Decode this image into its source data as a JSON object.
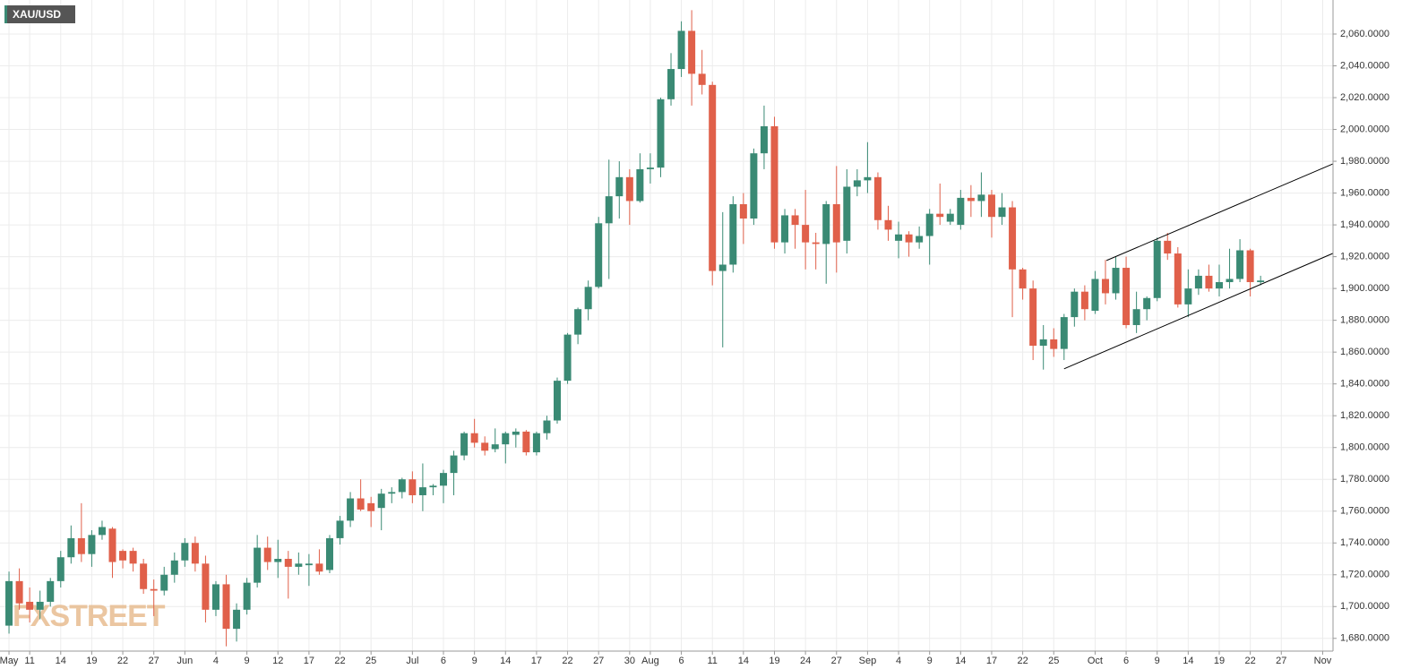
{
  "chart_data": {
    "type": "candlestick",
    "title": "XAU/USD",
    "watermark": "FXSTREET",
    "up_color": "#3a8a74",
    "down_color": "#e0604a",
    "grid": true,
    "xlim": [
      -0.87,
      128
    ],
    "ylim": [
      1672,
      2081.4
    ],
    "xticks": [
      {
        "value": 0,
        "label": "May"
      },
      {
        "value": 2,
        "label": "11"
      },
      {
        "value": 5,
        "label": "14"
      },
      {
        "value": 8,
        "label": "19"
      },
      {
        "value": 11,
        "label": "22"
      },
      {
        "value": 14,
        "label": "27"
      },
      {
        "value": 17,
        "label": "Jun"
      },
      {
        "value": 20,
        "label": "4"
      },
      {
        "value": 23,
        "label": "9"
      },
      {
        "value": 26,
        "label": "12"
      },
      {
        "value": 29,
        "label": "17"
      },
      {
        "value": 32,
        "label": "22"
      },
      {
        "value": 35,
        "label": "25"
      },
      {
        "value": 39,
        "label": "Jul"
      },
      {
        "value": 42,
        "label": "6"
      },
      {
        "value": 45,
        "label": "9"
      },
      {
        "value": 48,
        "label": "14"
      },
      {
        "value": 51,
        "label": "17"
      },
      {
        "value": 54,
        "label": "22"
      },
      {
        "value": 57,
        "label": "27"
      },
      {
        "value": 60,
        "label": "30"
      },
      {
        "value": 62,
        "label": "Aug"
      },
      {
        "value": 65,
        "label": "6"
      },
      {
        "value": 68,
        "label": "11"
      },
      {
        "value": 71,
        "label": "14"
      },
      {
        "value": 74,
        "label": "19"
      },
      {
        "value": 77,
        "label": "24"
      },
      {
        "value": 80,
        "label": "27"
      },
      {
        "value": 83,
        "label": "Sep"
      },
      {
        "value": 86,
        "label": "4"
      },
      {
        "value": 89,
        "label": "9"
      },
      {
        "value": 92,
        "label": "14"
      },
      {
        "value": 95,
        "label": "17"
      },
      {
        "value": 98,
        "label": "22"
      },
      {
        "value": 101,
        "label": "25"
      },
      {
        "value": 105,
        "label": "Oct"
      },
      {
        "value": 108,
        "label": "6"
      },
      {
        "value": 111,
        "label": "9"
      },
      {
        "value": 114,
        "label": "14"
      },
      {
        "value": 117,
        "label": "19"
      },
      {
        "value": 120,
        "label": "22"
      },
      {
        "value": 123,
        "label": "27"
      },
      {
        "value": 127,
        "label": "Nov"
      }
    ],
    "yticks": [
      {
        "value": 1680,
        "label": "1,680.0000"
      },
      {
        "value": 1700,
        "label": "1,700.0000"
      },
      {
        "value": 1720,
        "label": "1,720.0000"
      },
      {
        "value": 1740,
        "label": "1,740.0000"
      },
      {
        "value": 1760,
        "label": "1,760.0000"
      },
      {
        "value": 1780,
        "label": "1,780.0000"
      },
      {
        "value": 1800,
        "label": "1,800.0000"
      },
      {
        "value": 1820,
        "label": "1,820.0000"
      },
      {
        "value": 1840,
        "label": "1,840.0000"
      },
      {
        "value": 1860,
        "label": "1,860.0000"
      },
      {
        "value": 1880,
        "label": "1,880.0000"
      },
      {
        "value": 1900,
        "label": "1,900.0000"
      },
      {
        "value": 1920,
        "label": "1,920.0000"
      },
      {
        "value": 1940,
        "label": "1,940.0000"
      },
      {
        "value": 1960,
        "label": "1,960.0000"
      },
      {
        "value": 1980,
        "label": "1,980.0000"
      },
      {
        "value": 2000,
        "label": "2,000.0000"
      },
      {
        "value": 2020,
        "label": "2,020.0000"
      },
      {
        "value": 2040,
        "label": "2,040.0000"
      },
      {
        "value": 2060,
        "label": "2,060.0000"
      }
    ],
    "open": [
      1688,
      1716,
      1703,
      1698,
      1703,
      1716,
      1731,
      1743,
      1733,
      1745,
      1749,
      1735,
      1735,
      1727,
      1711,
      1710,
      1720,
      1729,
      1740,
      1727,
      1698,
      1714,
      1686,
      1698,
      1715,
      1737,
      1728,
      1730,
      1725,
      1726,
      1727,
      1723,
      1743,
      1754,
      1768,
      1765,
      1762,
      1771,
      1772,
      1780,
      1770,
      1775,
      1776,
      1784,
      1795,
      1809,
      1803,
      1799,
      1802,
      1808,
      1810,
      1797,
      1809,
      1817,
      1842,
      1871,
      1887,
      1901,
      1941,
      1958,
      1970,
      1955,
      1975,
      1976,
      2019,
      2038,
      2062,
      2035,
      2028,
      1911,
      1915,
      1953,
      1944,
      1985,
      2002,
      1929,
      1946,
      1940,
      1929,
      1928,
      1953,
      1930,
      1964,
      1968,
      1970,
      1943,
      1930,
      1934,
      1929,
      1933,
      1947,
      1942,
      1940,
      1957,
      1955,
      1959,
      1945,
      1951,
      1912,
      1900,
      1864,
      1868,
      1862,
      1882,
      1898,
      1886,
      1906,
      1897,
      1913,
      1877,
      1887,
      1894,
      1930,
      1922,
      1890,
      1900,
      1908,
      1900,
      1904,
      1906,
      1924,
      1904
    ],
    "high": [
      1722,
      1724,
      1712,
      1710,
      1718,
      1735,
      1751,
      1765,
      1748,
      1754,
      1750,
      1736,
      1737,
      1730,
      1717,
      1725,
      1734,
      1743,
      1744,
      1732,
      1716,
      1720,
      1702,
      1718,
      1745,
      1744,
      1742,
      1735,
      1734,
      1733,
      1736,
      1745,
      1757,
      1772,
      1780,
      1769,
      1774,
      1775,
      1781,
      1785,
      1790,
      1777,
      1786,
      1798,
      1810,
      1818,
      1807,
      1812,
      1810,
      1812,
      1811,
      1810,
      1820,
      1844,
      1872,
      1888,
      1905,
      1945,
      1981,
      1980,
      1975,
      1985,
      1985,
      2020,
      2048,
      2068,
      2075,
      2050,
      2030,
      1948,
      1958,
      1960,
      1988,
      2015,
      2008,
      1950,
      1950,
      1962,
      1935,
      1955,
      1977,
      1975,
      1975,
      1992,
      1973,
      1952,
      1942,
      1936,
      1939,
      1950,
      1966,
      1950,
      1962,
      1965,
      1973,
      1962,
      1960,
      1955,
      1913,
      1905,
      1877,
      1875,
      1884,
      1900,
      1902,
      1911,
      1918,
      1920,
      1920,
      1898,
      1895,
      1932,
      1935,
      1926,
      1912,
      1912,
      1915,
      1915,
      1925,
      1931,
      1925,
      1908
    ],
    "low": [
      1683,
      1698,
      1690,
      1692,
      1700,
      1712,
      1727,
      1728,
      1725,
      1742,
      1718,
      1724,
      1722,
      1708,
      1694,
      1707,
      1715,
      1725,
      1722,
      1690,
      1694,
      1675,
      1678,
      1695,
      1712,
      1723,
      1718,
      1705,
      1720,
      1713,
      1720,
      1721,
      1739,
      1750,
      1760,
      1750,
      1748,
      1765,
      1768,
      1765,
      1760,
      1770,
      1765,
      1770,
      1792,
      1800,
      1795,
      1797,
      1790,
      1800,
      1795,
      1795,
      1805,
      1815,
      1840,
      1865,
      1880,
      1900,
      1906,
      1944,
      1940,
      1954,
      1966,
      1970,
      2015,
      2033,
      2015,
      2022,
      1902,
      1863,
      1910,
      1928,
      1940,
      1975,
      1925,
      1922,
      1925,
      1912,
      1912,
      1903,
      1910,
      1922,
      1958,
      1960,
      1937,
      1930,
      1919,
      1920,
      1925,
      1915,
      1940,
      1940,
      1937,
      1945,
      1945,
      1932,
      1940,
      1882,
      1893,
      1855,
      1849,
      1857,
      1855,
      1876,
      1880,
      1884,
      1890,
      1893,
      1875,
      1872,
      1880,
      1892,
      1918,
      1888,
      1882,
      1896,
      1898,
      1895,
      1900,
      1904,
      1895,
      1902
    ],
    "close": [
      1716,
      1702,
      1698,
      1703,
      1716,
      1731,
      1743,
      1733,
      1745,
      1750,
      1728,
      1729,
      1727,
      1711,
      1710,
      1720,
      1729,
      1740,
      1727,
      1698,
      1714,
      1686,
      1698,
      1715,
      1737,
      1728,
      1730,
      1725,
      1727,
      1727,
      1722,
      1743,
      1754,
      1768,
      1761,
      1760,
      1771,
      1772,
      1780,
      1770,
      1775,
      1776,
      1784,
      1795,
      1809,
      1803,
      1798,
      1802,
      1809,
      1810,
      1797,
      1809,
      1817,
      1842,
      1871,
      1887,
      1901,
      1941,
      1958,
      1970,
      1955,
      1975,
      1976,
      2019,
      2038,
      2062,
      2035,
      2028,
      1911,
      1915,
      1953,
      1944,
      1985,
      2002,
      1929,
      1946,
      1940,
      1929,
      1928,
      1953,
      1929,
      1964,
      1968,
      1970,
      1943,
      1937,
      1934,
      1929,
      1933,
      1947,
      1945,
      1947,
      1957,
      1955,
      1959,
      1945,
      1951,
      1912,
      1900,
      1864,
      1868,
      1862,
      1882,
      1898,
      1887,
      1906,
      1897,
      1913,
      1877,
      1887,
      1894,
      1930,
      1922,
      1890,
      1900,
      1908,
      1900,
      1904,
      1906,
      1924,
      1904,
      1905
    ],
    "trendlines": [
      {
        "x": [
          106.1,
          128
        ],
        "y": [
          1917.6,
          1978.4
        ]
      },
      {
        "x": [
          102,
          128
        ],
        "y": [
          1849.5,
          1922.1
        ]
      }
    ]
  }
}
